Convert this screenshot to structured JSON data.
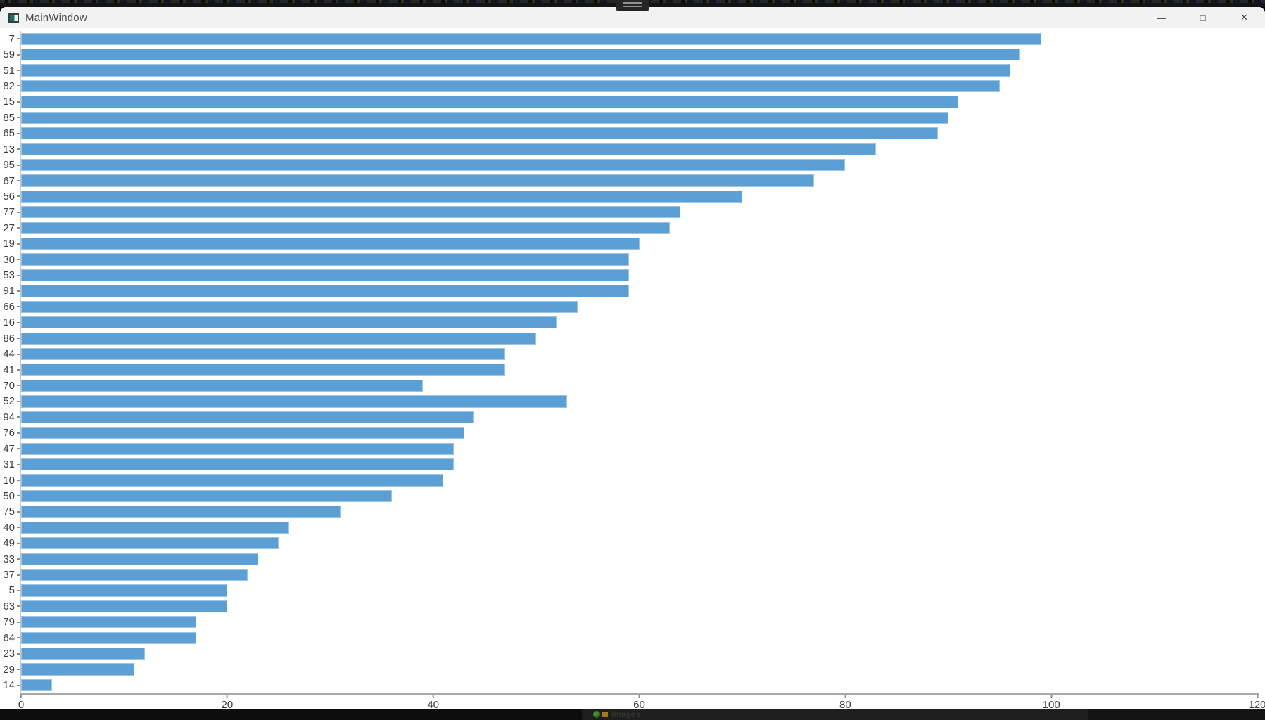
{
  "window": {
    "title": "MainWindow",
    "controls": {
      "minimize": "—",
      "maximize": "□",
      "close": "✕"
    }
  },
  "background": {
    "bottom_text": "Images"
  },
  "chart_data": {
    "type": "bar",
    "orientation": "horizontal",
    "title": "",
    "xlabel": "",
    "ylabel": "",
    "xlim": [
      0,
      120
    ],
    "x_ticks": [
      0,
      20,
      40,
      60,
      80,
      100,
      120
    ],
    "grid": false,
    "legend": false,
    "bar_color": "#5b9fd4",
    "categories": [
      7,
      59,
      51,
      82,
      15,
      85,
      65,
      13,
      95,
      67,
      56,
      77,
      27,
      19,
      30,
      53,
      91,
      66,
      16,
      86,
      44,
      41,
      70,
      52,
      94,
      76,
      47,
      31,
      10,
      50,
      75,
      40,
      49,
      33,
      37,
      5,
      63,
      79,
      64,
      23,
      29,
      14
    ],
    "values": [
      99,
      97,
      96,
      95,
      91,
      90,
      89,
      83,
      80,
      77,
      70,
      64,
      63,
      60,
      59,
      59,
      59,
      54,
      52,
      50,
      47,
      47,
      39,
      53,
      44,
      43,
      42,
      42,
      41,
      36,
      31,
      26,
      25,
      23,
      22,
      20,
      20,
      17,
      17,
      12,
      11,
      3
    ]
  }
}
